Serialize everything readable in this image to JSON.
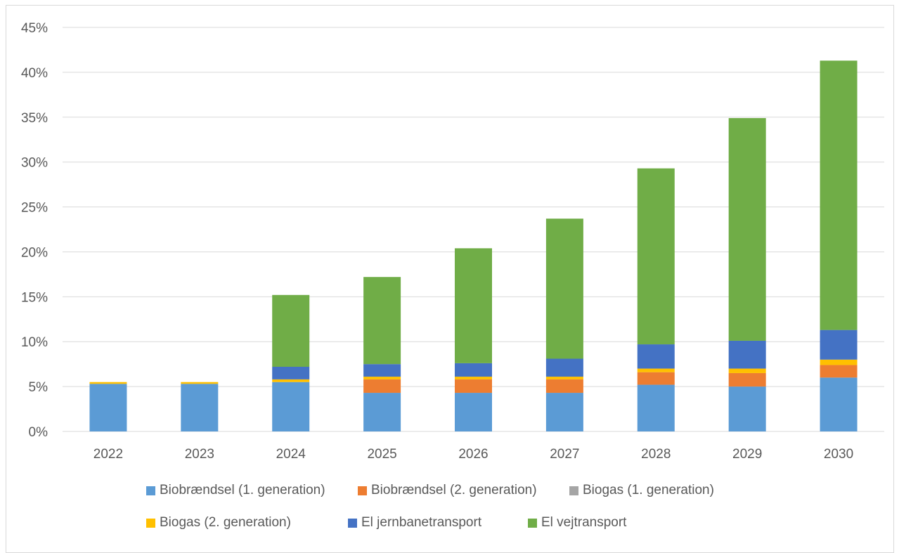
{
  "chart_data": {
    "type": "bar",
    "stacked": true,
    "categories": [
      "2022",
      "2023",
      "2024",
      "2025",
      "2026",
      "2027",
      "2028",
      "2029",
      "2030"
    ],
    "ylim": [
      0,
      45
    ],
    "ytick_labels": [
      "0%",
      "5%",
      "10%",
      "15%",
      "20%",
      "25%",
      "30%",
      "35%",
      "40%",
      "45%"
    ],
    "grid": true,
    "legend_position": "bottom",
    "series": [
      {
        "name": "Biobrændsel (1. generation)",
        "color": "#5b9bd5",
        "values": [
          5.3,
          5.3,
          5.5,
          4.3,
          4.3,
          4.3,
          5.2,
          5.0,
          6.0
        ]
      },
      {
        "name": "Biobrændsel (2. generation)",
        "color": "#ed7d31",
        "values": [
          0.0,
          0.0,
          0.0,
          1.5,
          1.5,
          1.5,
          1.4,
          1.5,
          1.4
        ]
      },
      {
        "name": "Biogas (1. generation)",
        "color": "#a5a5a5",
        "values": [
          0.0,
          0.0,
          0.0,
          0.0,
          0.0,
          0.0,
          0.0,
          0.0,
          0.0
        ]
      },
      {
        "name": "Biogas (2. generation)",
        "color": "#ffc000",
        "values": [
          0.2,
          0.2,
          0.3,
          0.3,
          0.3,
          0.3,
          0.4,
          0.5,
          0.6
        ]
      },
      {
        "name": "El jernbanetransport",
        "color": "#4472c4",
        "values": [
          0.0,
          0.0,
          1.4,
          1.4,
          1.5,
          2.0,
          2.7,
          3.1,
          3.3
        ]
      },
      {
        "name": "El vejtransport",
        "color": "#70ad47",
        "values": [
          0.0,
          0.0,
          8.0,
          9.7,
          12.8,
          15.6,
          19.6,
          24.8,
          30.0
        ]
      }
    ]
  }
}
